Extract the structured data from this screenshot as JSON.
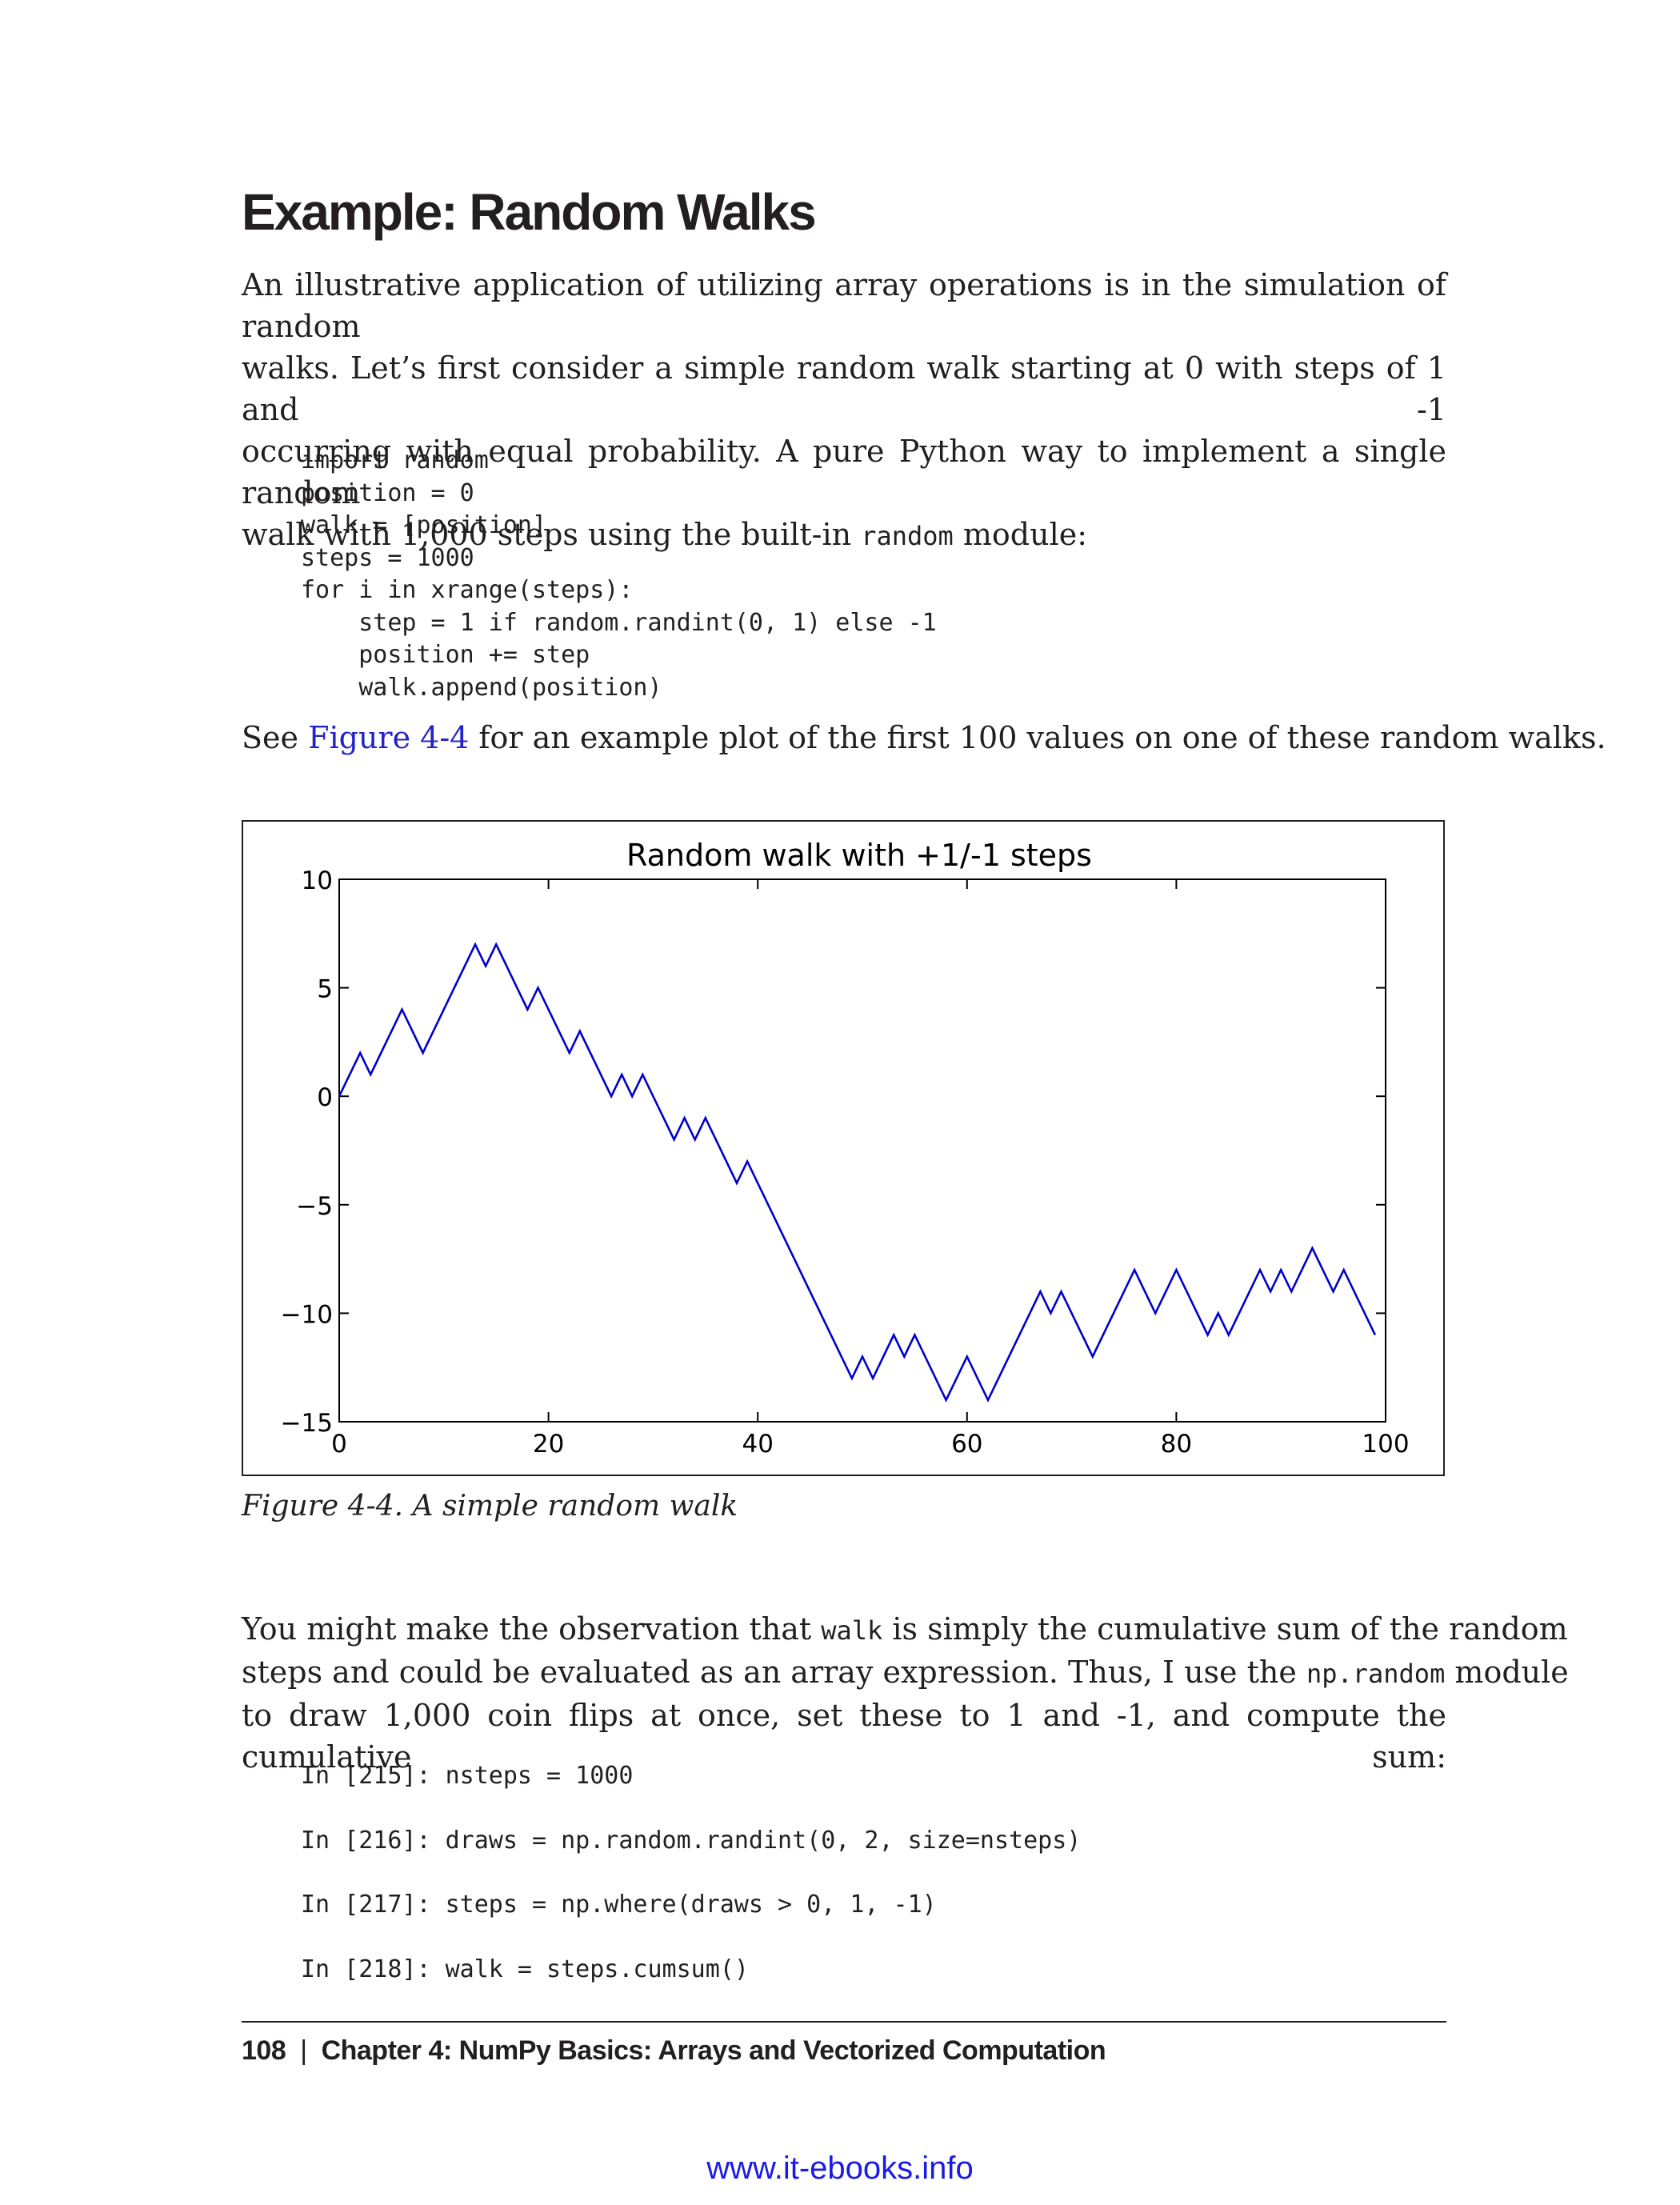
{
  "heading": "Example: Random Walks",
  "intro": {
    "line1": "An illustrative application of utilizing array operations is in the simulation of random",
    "line2": "walks. Let’s first consider a simple random walk starting at 0 with steps of 1 and -1",
    "line3": "occurring with equal probability. A pure Python way to implement a single random",
    "line4_before": "walk with 1,000 steps using the built-in ",
    "line4_code": "random",
    "line4_after": " module:"
  },
  "code1": [
    "import random",
    "position = 0",
    "walk = [position]",
    "steps = 1000",
    "for i in xrange(steps):",
    "    step = 1 if random.randint(0, 1) else -1",
    "    position += step",
    "    walk.append(position)"
  ],
  "see_figure": {
    "before": "See ",
    "link": "Figure 4-4",
    "after": " for an example plot of the first 100 values on one of these random walks."
  },
  "figure_caption": "Figure 4-4. A simple random walk",
  "chart_data": {
    "type": "line",
    "title": "Random walk with +1/-1 steps",
    "xlabel": "",
    "ylabel": "",
    "xlim": [
      0,
      100
    ],
    "ylim": [
      -15,
      10
    ],
    "xticks": [
      0,
      20,
      40,
      60,
      80,
      100
    ],
    "yticks": [
      10,
      5,
      0,
      -5,
      -10,
      -15
    ],
    "xtick_labels": [
      "0",
      "20",
      "40",
      "60",
      "80",
      "100"
    ],
    "ytick_labels": [
      "10",
      "5",
      "0",
      "−5",
      "−10",
      "−15"
    ],
    "grid": false,
    "line_color": "#0000cc",
    "series": [
      {
        "x": [
          0,
          2,
          3,
          6,
          8,
          13,
          14,
          15,
          18,
          19,
          22,
          23,
          26,
          27,
          28,
          29,
          32,
          33,
          34,
          35,
          38,
          39,
          49,
          50,
          51,
          53,
          54,
          55,
          58,
          60,
          62,
          67,
          68,
          69,
          72,
          76,
          78,
          80,
          83,
          84,
          85,
          88,
          89,
          90,
          91,
          93,
          95,
          96,
          99
        ],
        "y": [
          0,
          2,
          1,
          4,
          2,
          7,
          6,
          7,
          4,
          5,
          2,
          3,
          0,
          1,
          0,
          1,
          -2,
          -1,
          -2,
          -1,
          -4,
          -3,
          -13,
          -12,
          -13,
          -11,
          -12,
          -11,
          -14,
          -12,
          -14,
          -9,
          -10,
          -9,
          -12,
          -8,
          -10,
          -8,
          -11,
          -10,
          -11,
          -8,
          -9,
          -8,
          -9,
          -7,
          -9,
          -8,
          -11
        ]
      }
    ]
  },
  "para2": {
    "line1_before": "You might make the observation that ",
    "line1_code": "walk",
    "line1_after": " is simply the cumulative sum of the random",
    "line2_before": "steps and could be evaluated as an array expression. Thus, I use the ",
    "line2_code": "np.random",
    "line2_after": " module",
    "line3": "to draw 1,000 coin flips at once, set these to 1 and -1, and compute the cumulative sum:"
  },
  "code2": [
    "In [215]: nsteps = 1000",
    "In [216]: draws = np.random.randint(0, 2, size=nsteps)",
    "In [217]: steps = np.where(draws > 0, 1, -1)",
    "In [218]: walk = steps.cumsum()"
  ],
  "footer": {
    "page_number": "108",
    "separator": "|",
    "chapter": "Chapter 4:  NumPy Basics: Arrays and Vectorized Computation"
  },
  "watermark": "www.it-ebooks.info"
}
